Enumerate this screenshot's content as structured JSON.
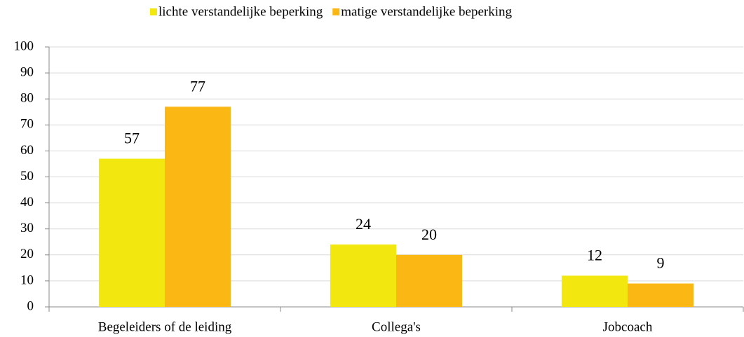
{
  "chart_data": {
    "type": "bar",
    "categories": [
      "Begeleiders of de leiding",
      "Collega's",
      "Jobcoach"
    ],
    "series": [
      {
        "name": "lichte verstandelijke beperking",
        "color": "#f2e80f",
        "values": [
          57,
          24,
          12
        ]
      },
      {
        "name": "matige verstandelijke beperking",
        "color": "#fbb714",
        "values": [
          77,
          20,
          9
        ]
      }
    ],
    "ylim": [
      0,
      100
    ],
    "yticks": [
      0,
      10,
      20,
      30,
      40,
      50,
      60,
      70,
      80,
      90,
      100
    ],
    "grid": true,
    "legend": "top"
  }
}
